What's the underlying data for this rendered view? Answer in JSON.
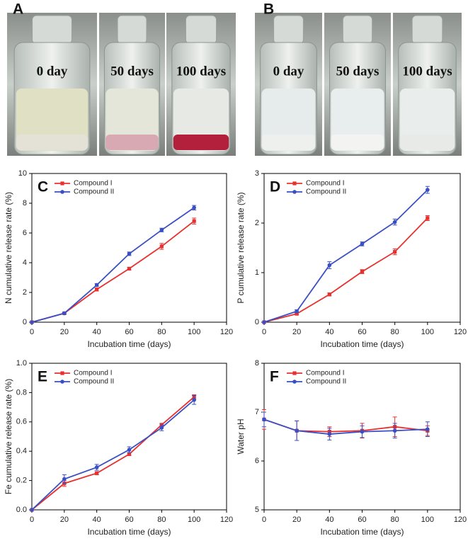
{
  "photos": [
    {
      "panel": "A",
      "labels": [
        "0 day",
        "50 days",
        "100 days"
      ]
    },
    {
      "panel": "B",
      "labels": [
        "0 day",
        "50 days",
        "100 days"
      ]
    }
  ],
  "chart_data": [
    {
      "type": "line",
      "panel": "C",
      "xlabel": "Incubation time (days)",
      "ylabel": "N cumulative release rate (%)",
      "x": [
        0,
        20,
        40,
        60,
        80,
        100
      ],
      "xlim": [
        0,
        120
      ],
      "xticks": [
        0,
        20,
        40,
        60,
        80,
        100,
        120
      ],
      "ylim": [
        0,
        10
      ],
      "yticks": [
        0,
        2,
        4,
        6,
        8,
        10
      ],
      "legend": "upper left",
      "series": [
        {
          "name": "Compound I",
          "color": "#e8312f",
          "marker": "square",
          "values": [
            0,
            0.6,
            2.2,
            3.6,
            5.1,
            6.8
          ],
          "errors": [
            0,
            0.05,
            0.1,
            0.08,
            0.2,
            0.2
          ]
        },
        {
          "name": "Compound II",
          "color": "#3a4fc4",
          "marker": "circle",
          "values": [
            0,
            0.6,
            2.5,
            4.6,
            6.2,
            7.7
          ],
          "errors": [
            0,
            0.05,
            0.1,
            0.12,
            0.12,
            0.15
          ]
        }
      ]
    },
    {
      "type": "line",
      "panel": "D",
      "xlabel": "Incubation time (days)",
      "ylabel": "P cumulative release rate (%)",
      "x": [
        0,
        20,
        40,
        60,
        80,
        100
      ],
      "xlim": [
        0,
        120
      ],
      "xticks": [
        0,
        20,
        40,
        60,
        80,
        100,
        120
      ],
      "ylim": [
        0,
        3
      ],
      "yticks": [
        0,
        1,
        2,
        3
      ],
      "legend": "upper left",
      "series": [
        {
          "name": "Compound I",
          "color": "#e8312f",
          "marker": "square",
          "values": [
            0,
            0.17,
            0.56,
            1.02,
            1.42,
            2.1
          ],
          "errors": [
            0,
            0.02,
            0.03,
            0.04,
            0.06,
            0.05
          ]
        },
        {
          "name": "Compound II",
          "color": "#3a4fc4",
          "marker": "circle",
          "values": [
            0,
            0.22,
            1.15,
            1.58,
            2.02,
            2.67
          ],
          "errors": [
            0,
            0.03,
            0.07,
            0.04,
            0.06,
            0.07
          ]
        }
      ]
    },
    {
      "type": "line",
      "panel": "E",
      "xlabel": "Incubation time (days)",
      "ylabel": "Fe cumulative release rate (%)",
      "x": [
        0,
        20,
        40,
        60,
        80,
        100
      ],
      "xlim": [
        0,
        120
      ],
      "xticks": [
        0,
        20,
        40,
        60,
        80,
        100,
        120
      ],
      "ylim": [
        0,
        1
      ],
      "yticks": [
        {
          "value": 0,
          "label": "0.0"
        },
        0.2,
        0.4,
        0.6,
        0.8,
        {
          "value": 1,
          "label": "1.0"
        }
      ],
      "legend": "upper left",
      "series": [
        {
          "name": "Compound I",
          "color": "#e8312f",
          "marker": "square",
          "values": [
            0,
            0.18,
            0.25,
            0.38,
            0.58,
            0.77
          ],
          "errors": [
            0,
            0.02,
            0.01,
            0.01,
            0.01,
            0.015
          ]
        },
        {
          "name": "Compound II",
          "color": "#3a4fc4",
          "marker": "circle",
          "values": [
            0,
            0.21,
            0.29,
            0.41,
            0.56,
            0.75
          ],
          "errors": [
            0,
            0.03,
            0.02,
            0.02,
            0.02,
            0.03
          ]
        }
      ]
    },
    {
      "type": "line",
      "panel": "F",
      "xlabel": "Incubation time (days)",
      "ylabel": "Water pH",
      "x": [
        0,
        20,
        40,
        60,
        80,
        100
      ],
      "xlim": [
        0,
        120
      ],
      "xticks": [
        0,
        20,
        40,
        60,
        80,
        100,
        120
      ],
      "ylim": [
        5,
        8
      ],
      "yticks": [
        5,
        6,
        7,
        8
      ],
      "legend": "upper left",
      "series": [
        {
          "name": "Compound I",
          "color": "#e8312f",
          "marker": "square",
          "values": [
            6.85,
            6.62,
            6.6,
            6.62,
            6.7,
            6.62
          ],
          "errors": [
            0.2,
            0.2,
            0.1,
            0.15,
            0.2,
            0.1
          ]
        },
        {
          "name": "Compound II",
          "color": "#3a4fc4",
          "marker": "circle",
          "values": [
            6.85,
            6.62,
            6.55,
            6.6,
            6.62,
            6.65
          ],
          "errors": [
            0.15,
            0.2,
            0.12,
            0.12,
            0.15,
            0.15
          ]
        }
      ]
    }
  ]
}
